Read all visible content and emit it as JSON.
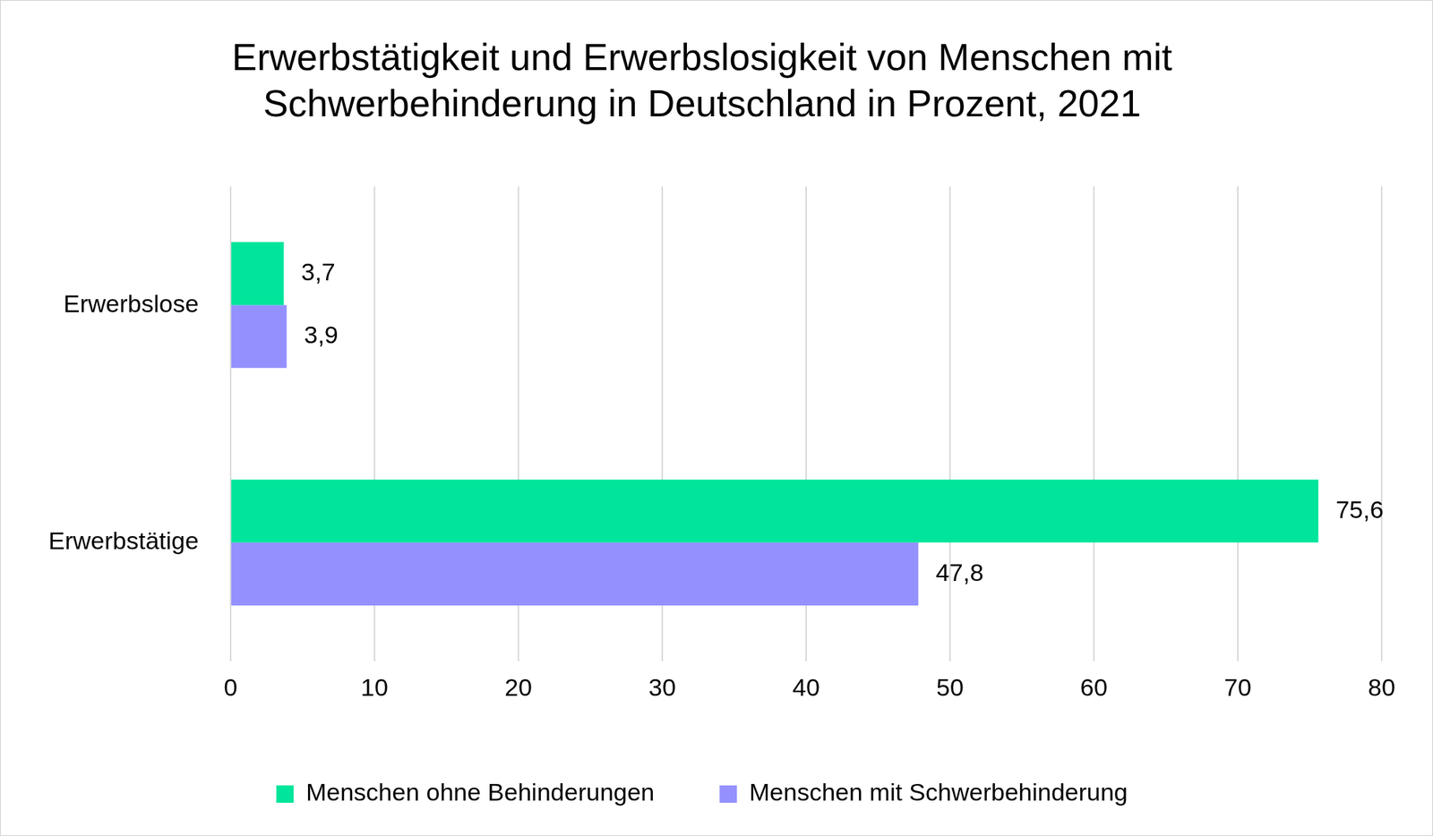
{
  "chart_data": {
    "type": "bar",
    "orientation": "horizontal",
    "title": "Erwerbstätigkeit und Erwerbslosigkeit von Menschen mit Schwerbehinderung in Deutschland in Prozent, 2021",
    "categories": [
      "Erwerbslose",
      "Erwerbstätige"
    ],
    "series": [
      {
        "name": "Menschen ohne Behinderungen",
        "color": "#00e59b",
        "values": [
          3.7,
          75.6
        ],
        "value_labels": [
          "3,7",
          "75,6"
        ]
      },
      {
        "name": "Menschen mit Schwerbehinderung",
        "color": "#9491ff",
        "values": [
          3.9,
          47.8
        ],
        "value_labels": [
          "3,9",
          "47,8"
        ]
      }
    ],
    "xlim": [
      0,
      80
    ],
    "xticks": [
      0,
      10,
      20,
      30,
      40,
      50,
      60,
      70,
      80
    ],
    "grid": true,
    "legend": "bottom",
    "data_labels": true
  }
}
